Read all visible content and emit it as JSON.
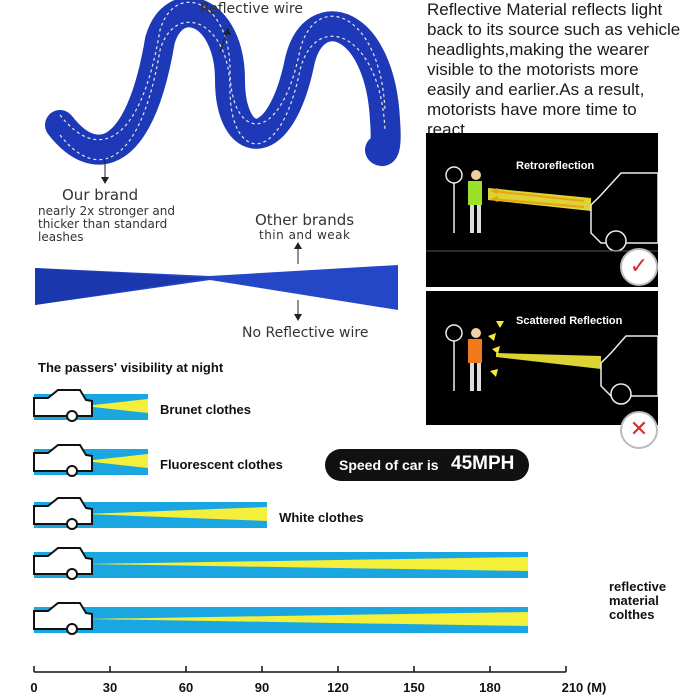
{
  "leash": {
    "reflective_wire_label": "Reflective wire",
    "our_brand_title": "Our brand",
    "our_brand_desc": "nearly 2x stronger and thicker than standard leashes",
    "other_brands_title": "Other brands",
    "other_brands_desc": "thin and weak",
    "no_reflective_label": "No Reflective wire",
    "strap_color": "#1f3fbf"
  },
  "reflective_info": {
    "description": "Reflective Material reflects light back to its source such as vehicle headlights,making the wearer visible to the motorists more easily and earlier.As a result, motorists have more time to react.",
    "panels": [
      {
        "title": "Retroreflection",
        "mark": "✓",
        "mark_color": "#d92b2b"
      },
      {
        "title": "Scattered Reflection",
        "mark": "✕",
        "mark_color": "#d92b2b"
      }
    ]
  },
  "visibility": {
    "title": "The passers' visibility at night",
    "speed_label": "Speed of car is",
    "speed_value": "45MPH",
    "rows": [
      {
        "label": "Brunet clothes",
        "distance": 45
      },
      {
        "label": "Fluorescent clothes",
        "distance": 45
      },
      {
        "label": "White clothes",
        "distance": 92
      },
      {
        "label": "reflective material colthes",
        "distance": 195
      },
      {
        "label": "",
        "distance": 195
      }
    ],
    "axis": {
      "ticks": [
        "0",
        "30",
        "60",
        "90",
        "120",
        "150",
        "180",
        "210 (M)"
      ],
      "max": 210
    },
    "colors": {
      "band": "#1aa6e0",
      "beam": "#f3ef3a"
    }
  }
}
